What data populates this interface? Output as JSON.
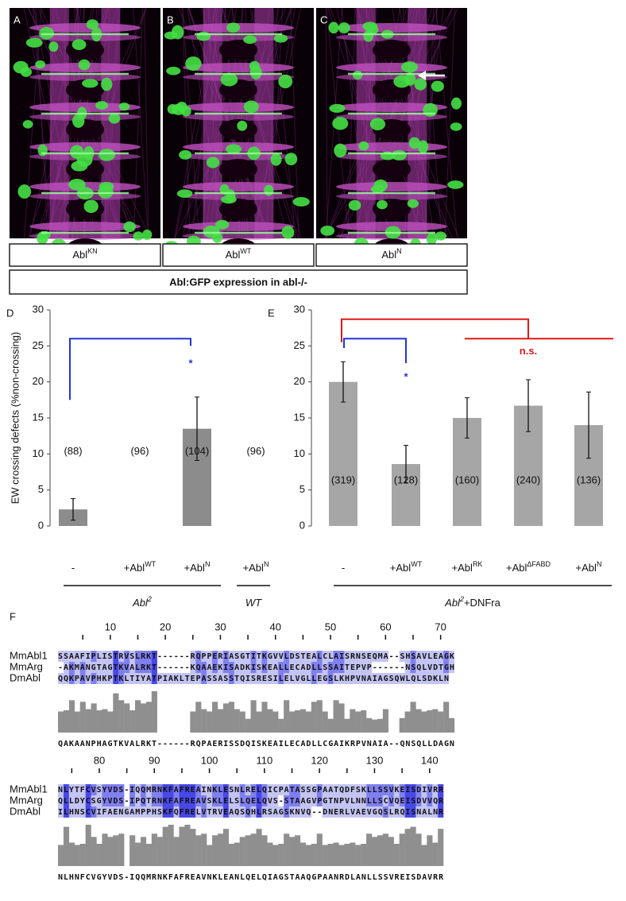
{
  "panels": [
    {
      "letter": "A",
      "label": {
        "text": "Abl",
        "sup": "KN"
      }
    },
    {
      "letter": "B",
      "label": {
        "text": "Abl",
        "sup": "WT"
      }
    },
    {
      "letter": "C",
      "label": {
        "text": "Abl",
        "sup": "N"
      }
    }
  ],
  "caption": "Abl:GFP expression in abl-/-",
  "chart_data": [
    {
      "type": "bar",
      "panel_letter": "D",
      "y_label": "EW crossing defects (%non-crossing)",
      "categories": [
        {
          "text": "-"
        },
        {
          "text": "+Abl",
          "sup": "WT"
        },
        {
          "text": "+Abl",
          "sup": "N"
        },
        {
          "text": "+Abl",
          "sup": "N"
        }
      ],
      "values": [
        2.3,
        0,
        13.5,
        0
      ],
      "errors": [
        1.5,
        0,
        4.4,
        0
      ],
      "bar_labels": [
        "(88)",
        "(96)",
        "(104)",
        "(96)"
      ],
      "group_labels": [
        {
          "text": "Abl",
          "sup": "2"
        },
        {
          "text": "WT"
        }
      ],
      "significance": [
        {
          "text": "*",
          "color": "#2233dd"
        }
      ],
      "ylim": [
        0,
        30
      ],
      "yticks": [
        0,
        5,
        10,
        15,
        20,
        25,
        30
      ],
      "color": "#8c8c8c"
    },
    {
      "type": "bar",
      "panel_letter": "E",
      "categories": [
        {
          "text": "-"
        },
        {
          "text": "+Abl",
          "sup": "WT"
        },
        {
          "text": "+Abl",
          "sup": "RK"
        },
        {
          "text": "+Abl",
          "sup": "ΔFABD"
        },
        {
          "text": "+Abl",
          "sup": "N"
        }
      ],
      "values": [
        20,
        8.6,
        15,
        16.7,
        14
      ],
      "errors": [
        2.8,
        2.6,
        2.8,
        3.6,
        4.6
      ],
      "bar_labels": [
        "(319)",
        "(128)",
        "(160)",
        "(240)",
        "(136)"
      ],
      "group_labels": [
        {
          "text": "Abl",
          "sup": "2",
          "after": "+DNFra"
        }
      ],
      "significance": [
        {
          "text": "*",
          "color": "#2233dd"
        },
        {
          "text": "n.s.",
          "color": "#e01818"
        }
      ],
      "ylim": [
        0,
        30
      ],
      "yticks": [
        0,
        5,
        10,
        15,
        20,
        25,
        30
      ],
      "color": "#a6a6a6"
    }
  ],
  "alignment": {
    "letter": "F",
    "blocks": [
      {
        "ruler": [
          10,
          20,
          30,
          40,
          50,
          60,
          70
        ],
        "rows": [
          {
            "name": "MmAbl1",
            "seq": "SSAAFIPLISTRVSLRKT------RQPPERIASGTITKGVVLDSTEALCLAISRNSEQMA--SHSAVLEAGK"
          },
          {
            "name": "MmArg",
            "seq": "-AKMANGTAGTKVALRKT------KQAAEKISADKISKEALLECADLLSSAITEPVP------NSQLVDTGH"
          },
          {
            "name": "DmAbl",
            "seq": "QQKPAVPHKPTKLTIYATPIAKLTEPASSASSTQISRESILELVGLLEGSLKHPVNAIAGSQWLQLSDKLN"
          }
        ],
        "consensus": "QAKAANPHAGTKVALRKT------RQPAERISSDQISKEAILECADLLCGAIKRPVNAIA--QNSQLLDAGN"
      },
      {
        "ruler": [
          80,
          90,
          100,
          110,
          120,
          130,
          140
        ],
        "rows": [
          {
            "name": "MmAbl1",
            "seq": "NLYTFCVSYVDS-IQQMRNKFAFREAINKLESNLRELQICPATASSGPAATQDFSKLLSSVKEISDIVRR"
          },
          {
            "name": "MmArg",
            "seq": "QLLDYCSGYVDS-IPQTRNKFAFREAVSKLELSLQELQVS-STAAGVPGTNPVLNNLLSCVQEISDVVQR"
          },
          {
            "name": "DmAbl",
            "seq": "ILHNSCVIFAENGAMPPHSKFQFRELVTRVEAQSQHLRSAGSKNVQ--DNERLVAEVGQSLRQISNALNR"
          }
        ],
        "consensus": "NLHNFCVGYVDS-IQQMRNKFAFREAVNKLEANLQELQIAGSTAAQGPAANRDLANLLSSVREISDAVRR"
      }
    ]
  }
}
